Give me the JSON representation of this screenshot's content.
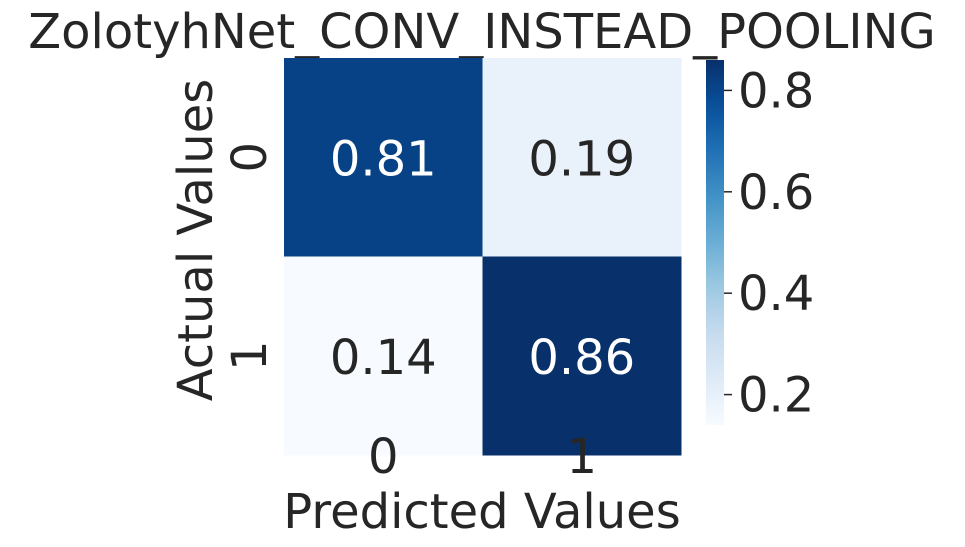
{
  "chart_data": {
    "type": "heatmap",
    "title": "ZolotyhNet_CONV_INSTEAD_POOLING",
    "xlabel": "Predicted Values",
    "ylabel": "Actual Values",
    "x_categories": [
      "0",
      "1"
    ],
    "y_categories": [
      "0",
      "1"
    ],
    "values": [
      [
        0.81,
        0.19
      ],
      [
        0.14,
        0.86
      ]
    ],
    "value_labels": [
      [
        "0.81",
        "0.19"
      ],
      [
        "0.14",
        "0.86"
      ]
    ],
    "colormap": "Blues",
    "colorbar": {
      "range": [
        0.14,
        0.86
      ],
      "ticks": [
        0.2,
        0.4,
        0.6,
        0.8
      ],
      "tick_labels": [
        "0.2",
        "0.4",
        "0.6",
        "0.8"
      ]
    },
    "grid": false,
    "annotation_colors": {
      "dark_cell": "#ffffff",
      "light_cell": "#262626"
    }
  }
}
